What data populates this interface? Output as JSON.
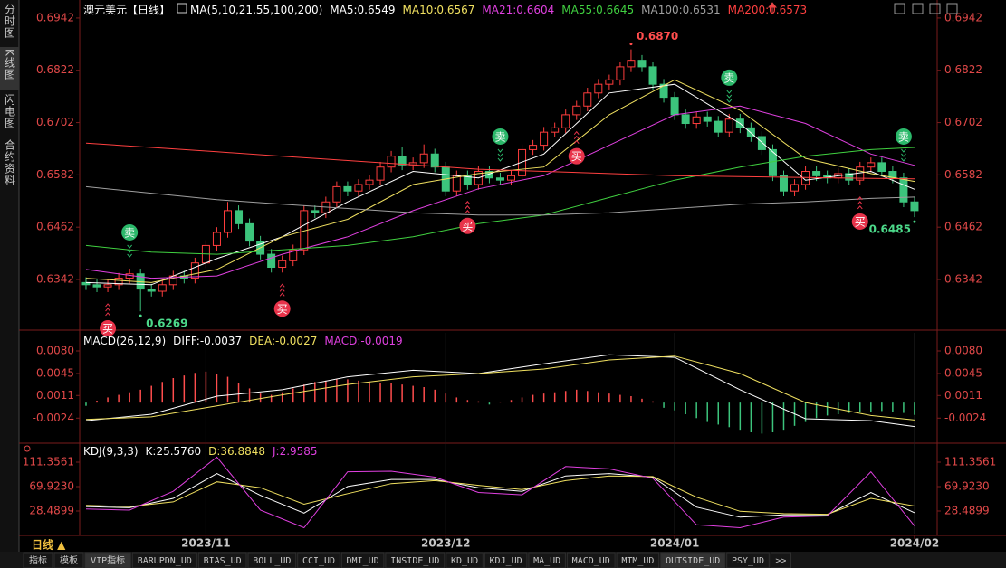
{
  "sidebar": [
    "分时图",
    "K线图",
    "闪电图",
    "合约资料"
  ],
  "sidebar_selected": 1,
  "chart_data": [
    {
      "type": "candlestick",
      "title": "澳元美元【日线】",
      "subtitle": "MA(5,10,21,55,100,200)",
      "up_color": "#ff3d3d",
      "down_color": "#3cc47c",
      "open": [
        0.6335,
        0.633,
        0.6325,
        0.633,
        0.6345,
        0.6355,
        0.632,
        0.6315,
        0.633,
        0.635,
        0.6345,
        0.638,
        0.642,
        0.645,
        0.65,
        0.647,
        0.643,
        0.64,
        0.637,
        0.6385,
        0.641,
        0.65,
        0.6495,
        0.652,
        0.6555,
        0.6545,
        0.656,
        0.657,
        0.66,
        0.6625,
        0.6605,
        0.661,
        0.663,
        0.66,
        0.6545,
        0.658,
        0.656,
        0.659,
        0.6575,
        0.657,
        0.658,
        0.664,
        0.665,
        0.668,
        0.669,
        0.672,
        0.674,
        0.677,
        0.679,
        0.68,
        0.683,
        0.6845,
        0.683,
        0.679,
        0.676,
        0.672,
        0.67,
        0.6715,
        0.6705,
        0.668,
        0.671,
        0.669,
        0.667,
        0.664,
        0.658,
        0.6545,
        0.656,
        0.659,
        0.658,
        0.6575,
        0.6585,
        0.657,
        0.66,
        0.661,
        0.659,
        0.6575,
        0.652
      ],
      "high": [
        0.6347,
        0.6342,
        0.6342,
        0.6357,
        0.6367,
        0.6367,
        0.6332,
        0.6342,
        0.6362,
        0.6362,
        0.6392,
        0.6432,
        0.6462,
        0.652,
        0.6512,
        0.6482,
        0.6442,
        0.6412,
        0.6397,
        0.6422,
        0.6512,
        0.6512,
        0.6532,
        0.6567,
        0.6567,
        0.6572,
        0.6582,
        0.6612,
        0.6637,
        0.6647,
        0.6622,
        0.6652,
        0.6642,
        0.6612,
        0.6592,
        0.6592,
        0.6602,
        0.6602,
        0.6587,
        0.6592,
        0.6652,
        0.6662,
        0.6692,
        0.6702,
        0.6732,
        0.6752,
        0.6782,
        0.6802,
        0.6812,
        0.6842,
        0.687,
        0.6857,
        0.6842,
        0.6802,
        0.6772,
        0.6732,
        0.6727,
        0.6727,
        0.6717,
        0.6722,
        0.6722,
        0.6702,
        0.6682,
        0.6652,
        0.6592,
        0.6572,
        0.6602,
        0.6602,
        0.6592,
        0.6597,
        0.6597,
        0.6612,
        0.6622,
        0.6622,
        0.6602,
        0.6587,
        0.6532
      ],
      "low": [
        0.6318,
        0.6313,
        0.6313,
        0.6318,
        0.6333,
        0.6269,
        0.6303,
        0.6303,
        0.6318,
        0.6333,
        0.6333,
        0.6368,
        0.6408,
        0.6438,
        0.6458,
        0.6418,
        0.6388,
        0.6358,
        0.6358,
        0.6373,
        0.6398,
        0.6483,
        0.6483,
        0.6508,
        0.6533,
        0.6533,
        0.6548,
        0.6558,
        0.6588,
        0.6593,
        0.6593,
        0.6598,
        0.6588,
        0.6533,
        0.6533,
        0.6548,
        0.6548,
        0.6563,
        0.6558,
        0.6558,
        0.6568,
        0.6628,
        0.6638,
        0.6668,
        0.6678,
        0.6708,
        0.6728,
        0.6758,
        0.6778,
        0.6788,
        0.6818,
        0.6818,
        0.6778,
        0.6748,
        0.6708,
        0.6688,
        0.6688,
        0.6693,
        0.6668,
        0.6668,
        0.6678,
        0.6658,
        0.6628,
        0.6568,
        0.6533,
        0.6533,
        0.6548,
        0.6568,
        0.6563,
        0.6563,
        0.6558,
        0.6558,
        0.6588,
        0.6578,
        0.6563,
        0.6508,
        0.6485
      ],
      "close": [
        0.633,
        0.6325,
        0.633,
        0.6345,
        0.6355,
        0.632,
        0.6315,
        0.633,
        0.635,
        0.6345,
        0.638,
        0.642,
        0.645,
        0.65,
        0.647,
        0.643,
        0.64,
        0.637,
        0.6385,
        0.641,
        0.65,
        0.6495,
        0.652,
        0.6555,
        0.6545,
        0.656,
        0.657,
        0.66,
        0.6625,
        0.6605,
        0.661,
        0.663,
        0.66,
        0.6545,
        0.658,
        0.656,
        0.659,
        0.6575,
        0.657,
        0.658,
        0.664,
        0.665,
        0.668,
        0.669,
        0.672,
        0.674,
        0.677,
        0.679,
        0.68,
        0.683,
        0.6845,
        0.683,
        0.679,
        0.676,
        0.672,
        0.67,
        0.6715,
        0.6705,
        0.668,
        0.671,
        0.669,
        0.667,
        0.664,
        0.658,
        0.6545,
        0.656,
        0.659,
        0.658,
        0.6575,
        0.6585,
        0.657,
        0.66,
        0.661,
        0.659,
        0.6575,
        0.652,
        0.65
      ],
      "series": [
        {
          "name": "MA5:0.6549",
          "color": "#ffffff",
          "x": [
            0,
            6,
            12,
            18,
            24,
            30,
            36,
            42,
            48,
            54,
            60,
            66,
            72,
            76
          ],
          "values": [
            0.6335,
            0.633,
            0.639,
            0.644,
            0.652,
            0.659,
            0.6575,
            0.663,
            0.677,
            0.679,
            0.67,
            0.657,
            0.659,
            0.6549
          ]
        },
        {
          "name": "MA10:0.6567",
          "color": "#f0e060",
          "x": [
            0,
            6,
            12,
            18,
            24,
            30,
            36,
            42,
            48,
            54,
            60,
            66,
            72,
            76
          ],
          "values": [
            0.6345,
            0.6335,
            0.6365,
            0.644,
            0.648,
            0.656,
            0.6585,
            0.66,
            0.672,
            0.68,
            0.673,
            0.662,
            0.6585,
            0.6567
          ]
        },
        {
          "name": "MA21:0.6604",
          "color": "#e040e0",
          "x": [
            0,
            6,
            12,
            18,
            24,
            30,
            36,
            42,
            48,
            54,
            60,
            66,
            72,
            76
          ],
          "values": [
            0.6365,
            0.6345,
            0.635,
            0.64,
            0.644,
            0.65,
            0.655,
            0.658,
            0.665,
            0.672,
            0.674,
            0.67,
            0.663,
            0.6604
          ]
        },
        {
          "name": "MA55:0.6645",
          "color": "#40d040",
          "x": [
            0,
            6,
            12,
            18,
            24,
            30,
            36,
            42,
            48,
            54,
            60,
            66,
            72,
            76
          ],
          "values": [
            0.642,
            0.6405,
            0.64,
            0.641,
            0.642,
            0.644,
            0.647,
            0.649,
            0.653,
            0.657,
            0.66,
            0.6625,
            0.664,
            0.6645
          ]
        },
        {
          "name": "MA100:0.6531",
          "color": "#a0a0a0",
          "x": [
            0,
            6,
            12,
            18,
            24,
            30,
            36,
            42,
            48,
            54,
            60,
            66,
            72,
            76
          ],
          "values": [
            0.6555,
            0.654,
            0.6525,
            0.6515,
            0.6505,
            0.6495,
            0.649,
            0.649,
            0.6495,
            0.6505,
            0.6515,
            0.652,
            0.6528,
            0.6531
          ]
        },
        {
          "name": "MA200:0.6573",
          "color": "#ff4040",
          "x": [
            0,
            6,
            12,
            18,
            24,
            30,
            36,
            42,
            48,
            54,
            60,
            66,
            72,
            76
          ],
          "values": [
            0.6655,
            0.6645,
            0.6635,
            0.6625,
            0.6615,
            0.6605,
            0.6595,
            0.659,
            0.6585,
            0.658,
            0.6578,
            0.6576,
            0.6574,
            0.6573
          ]
        }
      ],
      "annotations": [
        {
          "text": "0.6870",
          "x": 50,
          "y": 0.687,
          "color": "#ff4d4d"
        },
        {
          "text": "0.6269",
          "x": 5,
          "y": 0.6269,
          "color": "#4cd98a"
        },
        {
          "text": "0.6485",
          "x": 76,
          "y": 0.6485,
          "color": "#4cd98a"
        }
      ],
      "buy_signals": {
        "label": "买",
        "color": "#e8334a",
        "x": [
          2,
          18,
          35,
          45,
          71
        ]
      },
      "sell_signals": {
        "label": "卖",
        "color": "#2bb86a",
        "x": [
          4,
          38,
          59,
          75
        ]
      },
      "xlim": [
        -0.58,
        78.08
      ],
      "xticks": [
        {
          "value": 11,
          "label": "2023/11"
        },
        {
          "value": 33,
          "label": "2023/12"
        },
        {
          "value": 54,
          "label": "2024/01"
        },
        {
          "value": 76,
          "label": "2024/02"
        }
      ],
      "ylim": [
        0.6232,
        0.6973
      ],
      "yticks": [
        0.6342,
        0.6462,
        0.6582,
        0.6702,
        0.6822,
        0.6942
      ]
    },
    {
      "type": "macd",
      "title": "MACD(26,12,9)",
      "name": "MACD:-0.0019",
      "name_color": "#e040e0",
      "up_color": "#ff4d4d",
      "down_color": "#3cc47c",
      "values": [
        -0.0005,
        0.0003,
        0.0008,
        0.0012,
        0.0016,
        0.002,
        0.0026,
        0.0032,
        0.0038,
        0.0042,
        0.0046,
        0.0048,
        0.0044,
        0.004,
        0.003,
        0.0022,
        0.0014,
        0.0012,
        0.0016,
        0.0022,
        0.0028,
        0.0032,
        0.0034,
        0.0036,
        0.0036,
        0.0034,
        0.0032,
        0.003,
        0.003,
        0.0028,
        0.0026,
        0.0024,
        0.002,
        0.0014,
        0.0008,
        0.0004,
        0.0002,
        -0.0003,
        0.0001,
        0.0004,
        0.0008,
        0.0012,
        0.0014,
        0.0016,
        0.0018,
        0.002,
        0.0018,
        0.0016,
        0.0014,
        0.0012,
        0.001,
        0.0006,
        0.0002,
        -0.0008,
        -0.0012,
        -0.0018,
        -0.0024,
        -0.003,
        -0.0034,
        -0.0038,
        -0.0042,
        -0.0046,
        -0.0048,
        -0.0046,
        -0.0042,
        -0.0036,
        -0.003,
        -0.0024,
        -0.002,
        -0.0018,
        -0.0016,
        -0.0015,
        -0.0014,
        -0.0013,
        -0.0014,
        -0.0016,
        -0.0019
      ],
      "series": [
        {
          "name": "DIFF:-0.0037",
          "color": "#ffffff",
          "x": [
            0,
            6,
            12,
            18,
            24,
            30,
            36,
            42,
            48,
            54,
            60,
            66,
            72,
            76
          ],
          "values": [
            -0.0028,
            -0.0018,
            0.001,
            0.002,
            0.004,
            0.005,
            0.0045,
            0.006,
            0.0074,
            0.007,
            0.002,
            -0.0025,
            -0.0028,
            -0.0037
          ]
        },
        {
          "name": "DEA:-0.0027",
          "color": "#f0e060",
          "x": [
            0,
            6,
            12,
            18,
            24,
            30,
            36,
            42,
            48,
            54,
            60,
            66,
            72,
            76
          ],
          "values": [
            -0.0026,
            -0.0022,
            -0.0005,
            0.0012,
            0.0028,
            0.004,
            0.0045,
            0.0052,
            0.0066,
            0.0072,
            0.0045,
            0.0,
            -0.002,
            -0.0027
          ]
        }
      ],
      "xlim": [
        -0.58,
        78.08
      ],
      "ylim": [
        -0.006,
        0.0108
      ],
      "yticks": [
        {
          "value": 0.008,
          "label": "0.0080"
        },
        0.0045,
        0.0011,
        -0.0024
      ]
    },
    {
      "type": "kdj",
      "title": "KDJ(9,3,3)",
      "series": [
        {
          "name": "K:25.5760",
          "color": "#ffffff",
          "x": [
            0,
            4,
            8,
            12,
            16,
            20,
            24,
            28,
            32,
            36,
            40,
            44,
            48,
            52,
            56,
            60,
            64,
            68,
            72,
            76
          ],
          "values": [
            36,
            34,
            50,
            92,
            55,
            25,
            70,
            82,
            82,
            68,
            62,
            88,
            92,
            86,
            35,
            18,
            22,
            22,
            60,
            25.576
          ]
        },
        {
          "name": "D:36.8848",
          "color": "#f0e060",
          "x": [
            0,
            4,
            8,
            12,
            16,
            20,
            24,
            28,
            32,
            36,
            40,
            44,
            48,
            52,
            56,
            60,
            64,
            68,
            72,
            76
          ],
          "values": [
            38,
            36,
            44,
            78,
            68,
            40,
            58,
            75,
            80,
            72,
            65,
            80,
            88,
            87,
            52,
            28,
            24,
            23,
            50,
            36.8848
          ]
        },
        {
          "name": "J:2.9585",
          "color": "#e040e0",
          "x": [
            0,
            4,
            8,
            12,
            16,
            20,
            24,
            28,
            32,
            36,
            40,
            44,
            48,
            52,
            56,
            60,
            64,
            68,
            72,
            76
          ],
          "values": [
            32,
            30,
            62,
            120,
            30,
            0,
            95,
            96,
            86,
            60,
            56,
            104,
            100,
            84,
            5,
            0,
            18,
            20,
            95,
            2.9585
          ]
        }
      ],
      "xlim": [
        -0.58,
        78.08
      ],
      "ylim": [
        -9.9,
        140.5
      ],
      "yticks": [
        111.3561,
        {
          "value": 69.923,
          "label": "69.9230"
        },
        28.4899
      ]
    }
  ],
  "period_button": "日线 ▲",
  "tabs": [
    "指标",
    "模板",
    "VIP指标",
    "BARUPDN_UD",
    "BIAS_UD",
    "BOLL_UD",
    "CCI_UD",
    "DMI_UD",
    "INSIDE_UD",
    "KD_UD",
    "KDJ_UD",
    "MA_UD",
    "MACD_UD",
    "MTM_UD",
    "OUTSIDE_UD",
    "PSY_UD",
    ">>"
  ],
  "selected_tabs": [
    2,
    14
  ]
}
